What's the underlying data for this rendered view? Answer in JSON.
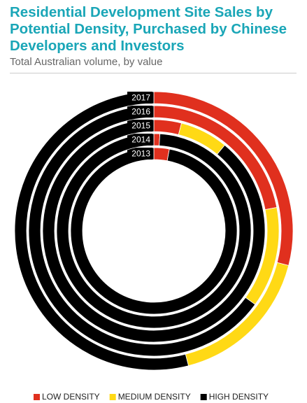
{
  "chart_data": {
    "type": "radial-stacked-ring",
    "title": "Residential Development Site Sales by Potential Density, Purchased by Chinese Developers and Investors",
    "subtitle": "Total Australian volume, by value",
    "categories": [
      "2013",
      "2014",
      "2015",
      "2016",
      "2017"
    ],
    "series": [
      {
        "name": "LOW DENSITY",
        "color": "#e0301e",
        "values": [
          3,
          1,
          4,
          22,
          29
        ]
      },
      {
        "name": "MEDIUM DENSITY",
        "color": "#ffd915",
        "values": [
          0,
          0,
          7,
          13,
          17
        ]
      },
      {
        "name": "HIGH DENSITY",
        "color": "#000000",
        "values": [
          97,
          99,
          89,
          65,
          54
        ]
      }
    ]
  }
}
